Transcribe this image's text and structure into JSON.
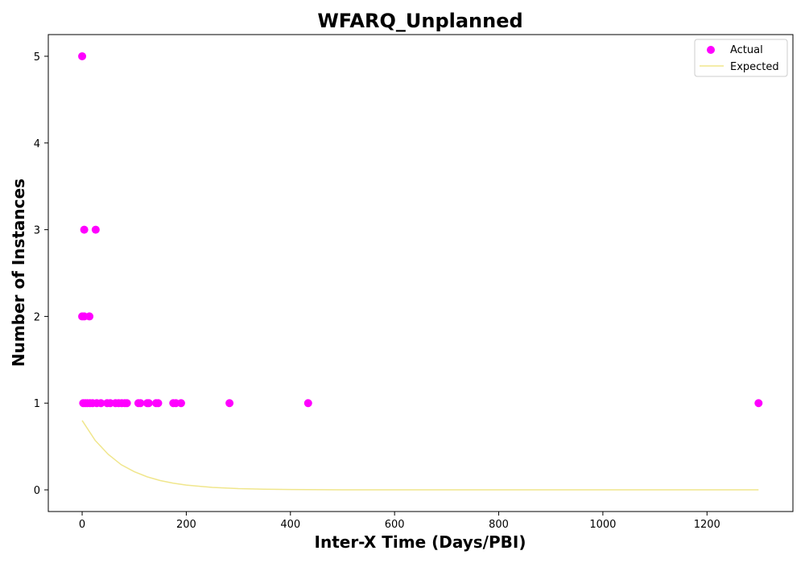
{
  "chart_data": {
    "type": "scatter",
    "title": "WFARQ_Unplanned",
    "xlabel": "Inter-X Time (Days/PBI)",
    "ylabel": "Number of Instances",
    "xlim": [
      -65,
      1365
    ],
    "ylim": [
      -0.25,
      5.25
    ],
    "xticks": [
      0,
      200,
      400,
      600,
      800,
      1000,
      1200
    ],
    "yticks": [
      0,
      1,
      2,
      3,
      4,
      5
    ],
    "grid": false,
    "legend_position": "top-right",
    "series": [
      {
        "name": "Actual",
        "type": "scatter",
        "color": "#ff00ff",
        "points": [
          {
            "x": 0,
            "y": 5
          },
          {
            "x": 4,
            "y": 3
          },
          {
            "x": 26,
            "y": 3
          },
          {
            "x": 0,
            "y": 2
          },
          {
            "x": 4,
            "y": 2
          },
          {
            "x": 14,
            "y": 2
          },
          {
            "x": 2,
            "y": 1
          },
          {
            "x": 6,
            "y": 1
          },
          {
            "x": 10,
            "y": 1
          },
          {
            "x": 15,
            "y": 1
          },
          {
            "x": 20,
            "y": 1
          },
          {
            "x": 28,
            "y": 1
          },
          {
            "x": 36,
            "y": 1
          },
          {
            "x": 48,
            "y": 1
          },
          {
            "x": 54,
            "y": 1
          },
          {
            "x": 64,
            "y": 1
          },
          {
            "x": 70,
            "y": 1
          },
          {
            "x": 76,
            "y": 1
          },
          {
            "x": 82,
            "y": 1
          },
          {
            "x": 86,
            "y": 1
          },
          {
            "x": 108,
            "y": 1
          },
          {
            "x": 112,
            "y": 1
          },
          {
            "x": 125,
            "y": 1
          },
          {
            "x": 128,
            "y": 1
          },
          {
            "x": 142,
            "y": 1
          },
          {
            "x": 146,
            "y": 1
          },
          {
            "x": 175,
            "y": 1
          },
          {
            "x": 180,
            "y": 1
          },
          {
            "x": 190,
            "y": 1
          },
          {
            "x": 283,
            "y": 1
          },
          {
            "x": 434,
            "y": 1
          },
          {
            "x": 1299,
            "y": 1
          }
        ]
      },
      {
        "name": "Expected",
        "type": "line",
        "color": "#f0e68c",
        "points": [
          {
            "x": 0,
            "y": 0.8
          },
          {
            "x": 25,
            "y": 0.57
          },
          {
            "x": 50,
            "y": 0.41
          },
          {
            "x": 75,
            "y": 0.29
          },
          {
            "x": 100,
            "y": 0.21
          },
          {
            "x": 125,
            "y": 0.15
          },
          {
            "x": 150,
            "y": 0.107
          },
          {
            "x": 175,
            "y": 0.077
          },
          {
            "x": 200,
            "y": 0.055
          },
          {
            "x": 250,
            "y": 0.028
          },
          {
            "x": 300,
            "y": 0.014
          },
          {
            "x": 350,
            "y": 0.007
          },
          {
            "x": 400,
            "y": 0.0036
          },
          {
            "x": 500,
            "y": 0.001
          },
          {
            "x": 600,
            "y": 0.0002
          },
          {
            "x": 800,
            "y": 0
          },
          {
            "x": 1000,
            "y": 0
          },
          {
            "x": 1299,
            "y": 0
          }
        ]
      }
    ]
  }
}
